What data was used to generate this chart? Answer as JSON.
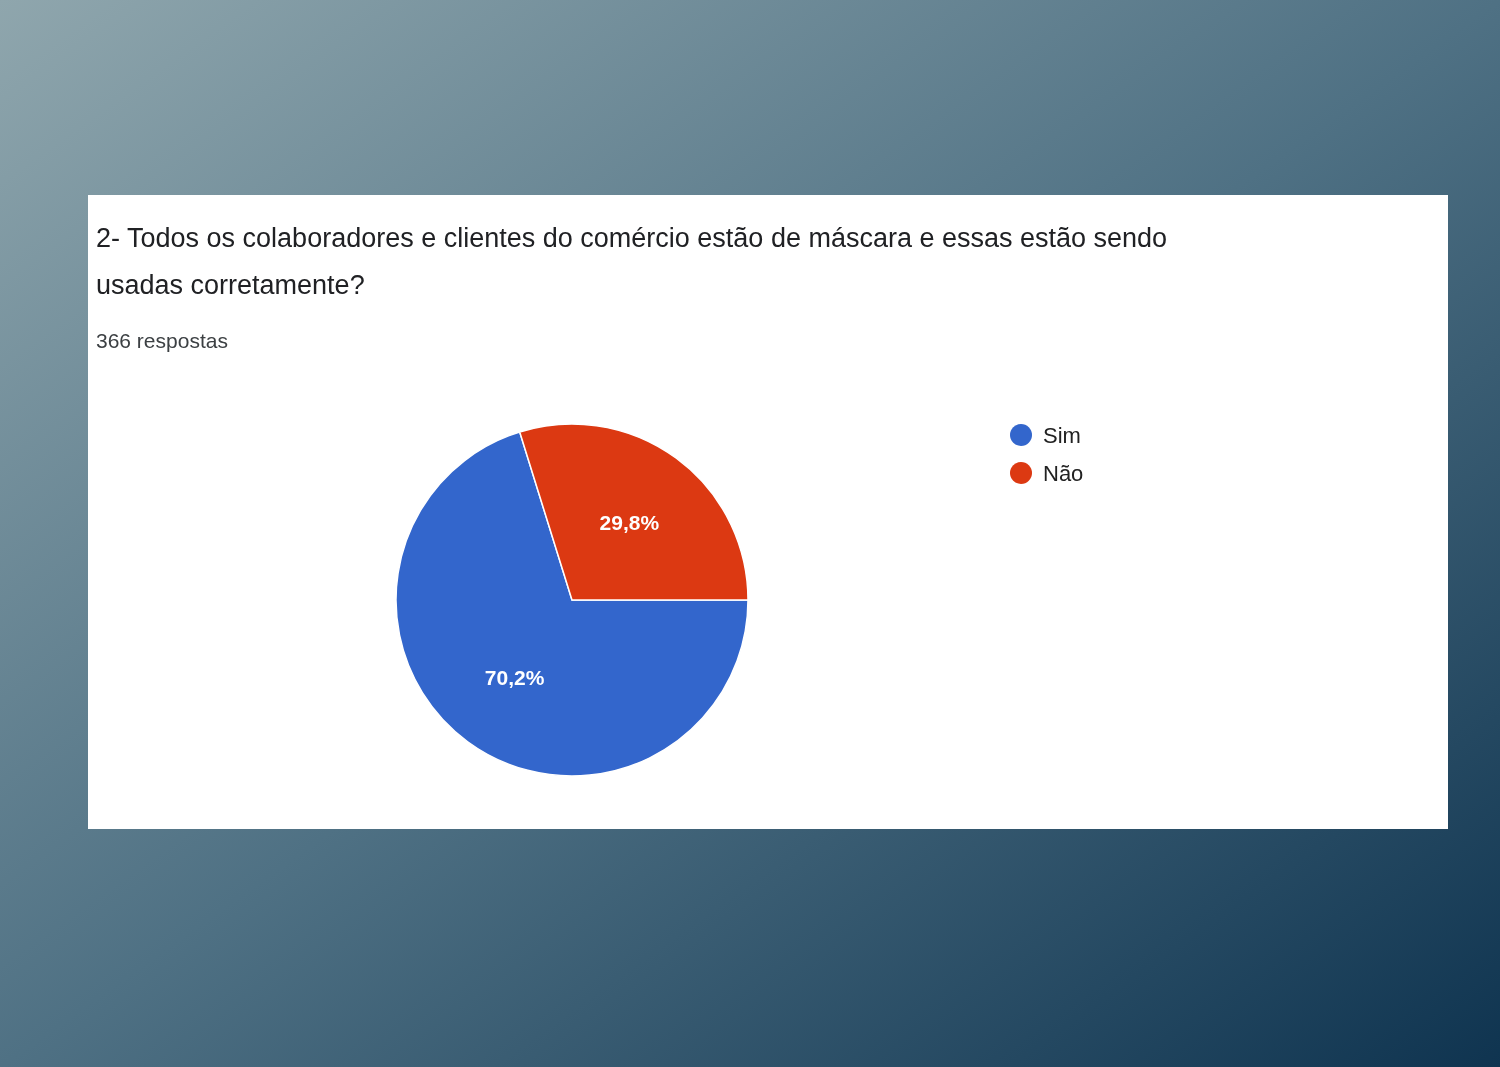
{
  "chart_data": {
    "type": "pie",
    "title": "2- Todos os colaboradores e clientes do comércio estão de máscara e essas estão sendo usadas corretamente?",
    "subtitle": "366 respostas",
    "categories": [
      "Sim",
      "Não"
    ],
    "values": [
      70.2,
      29.8
    ],
    "colors": [
      "#3366cc",
      "#dc3912"
    ],
    "value_labels": [
      "70,2%",
      "29,8%"
    ],
    "legend": "right"
  }
}
